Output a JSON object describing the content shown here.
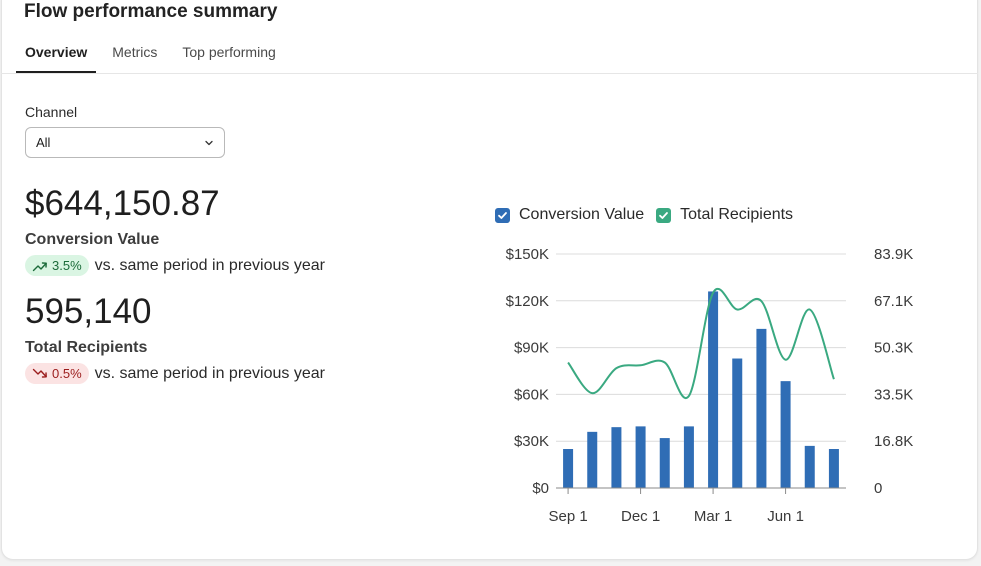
{
  "header": {
    "title": "Flow performance summary"
  },
  "tabs": [
    {
      "label": "Overview",
      "active": true
    },
    {
      "label": "Metrics",
      "active": false
    },
    {
      "label": "Top performing",
      "active": false
    }
  ],
  "filter": {
    "label": "Channel",
    "value": "All"
  },
  "metrics": [
    {
      "value": "$644,150.87",
      "label": "Conversion Value",
      "change": "3.5%",
      "direction": "up",
      "compare": "vs. same period in previous year"
    },
    {
      "value": "595,140",
      "label": "Total Recipients",
      "change": "0.5%",
      "direction": "down",
      "compare": "vs. same period in previous year"
    }
  ],
  "colors": {
    "bar": "#2f6db5",
    "line": "#3aa981",
    "grid": "#dcdcdc"
  },
  "chart_data": {
    "type": "bar",
    "legend": [
      "Conversion Value",
      "Total Recipients"
    ],
    "x_tick_labels": [
      "Sep 1",
      "Dec 1",
      "Mar 1",
      "Jun 1"
    ],
    "x_tick_indices": [
      0,
      3,
      6,
      9
    ],
    "y_left_ticks": [
      "$0",
      "$30K",
      "$60K",
      "$90K",
      "$120K",
      "$150K"
    ],
    "y_right_ticks": [
      "0",
      "16.8K",
      "33.5K",
      "50.3K",
      "67.1K",
      "83.9K"
    ],
    "ylim_left": [
      0,
      150000
    ],
    "ylim_right": [
      0,
      83900
    ],
    "grid": true,
    "legend_position": "top-left",
    "series": [
      {
        "name": "Conversion Value",
        "type": "bar",
        "axis": "left",
        "values": [
          25000,
          36000,
          39000,
          39500,
          32000,
          39500,
          126000,
          83000,
          102000,
          68500,
          27000,
          25000
        ]
      },
      {
        "name": "Total Recipients",
        "type": "line",
        "axis": "right",
        "values": [
          45000,
          34000,
          43000,
          44000,
          45000,
          33000,
          70000,
          64000,
          67000,
          46000,
          64000,
          39000
        ]
      }
    ]
  }
}
